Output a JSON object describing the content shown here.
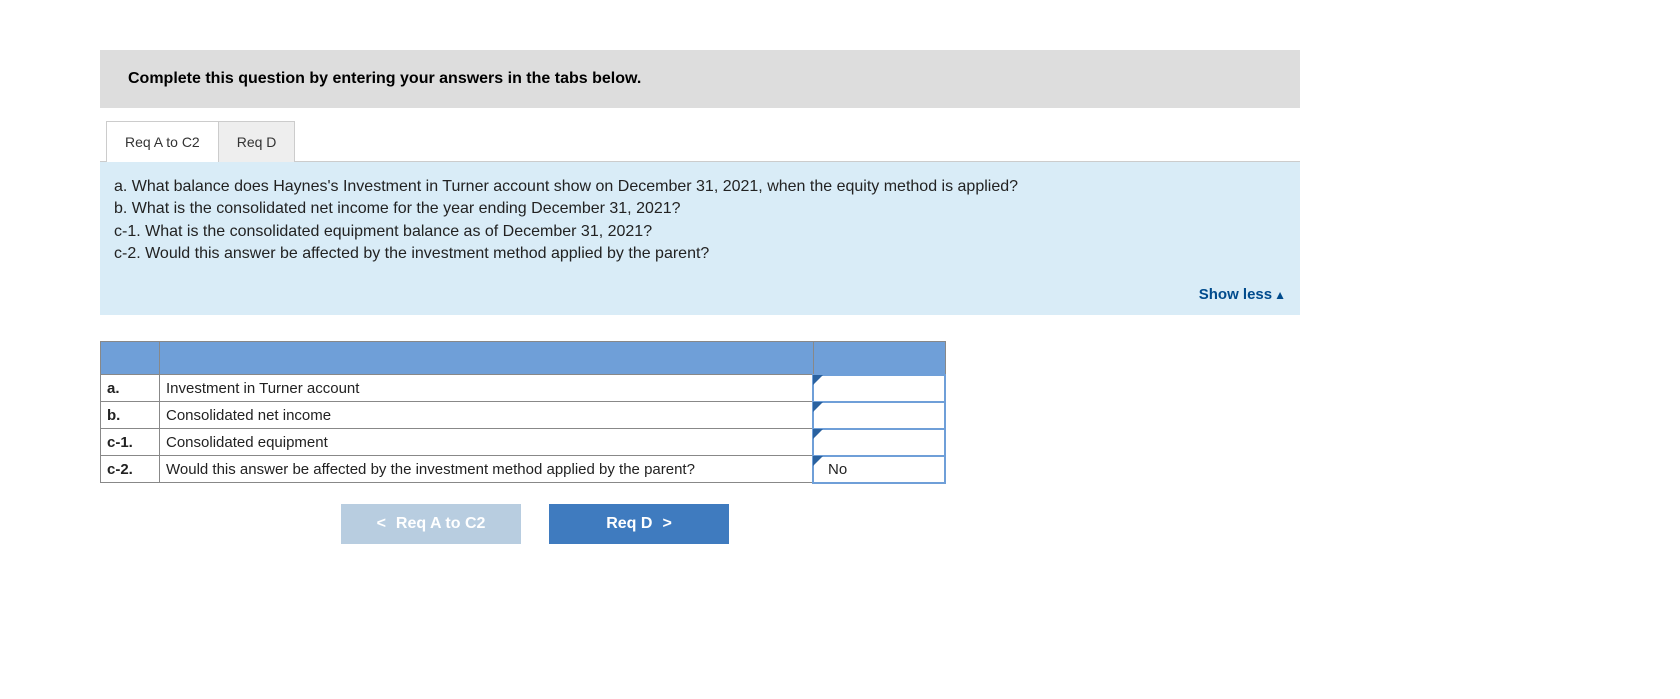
{
  "instruction": "Complete this question by entering your answers in the tabs below.",
  "tabs": [
    {
      "label": "Req A to C2",
      "active": true
    },
    {
      "label": "Req D",
      "active": false
    }
  ],
  "question_lines": [
    "a. What balance does Haynes's Investment in Turner account show on December 31, 2021, when the equity method is applied?",
    "b. What is the consolidated net income for the year ending December 31, 2021?",
    "c-1. What is the consolidated equipment balance as of December 31, 2021?",
    "c-2. Would this answer be affected by the investment method applied by the parent?"
  ],
  "show_less": "Show less",
  "table": {
    "header_bg": "#6f9fd8",
    "input_border": "#6f9fd8",
    "corner_color": "#2a62a0",
    "rows": [
      {
        "label": "a.",
        "desc": "Investment in Turner account",
        "value": "",
        "editable": true
      },
      {
        "label": "b.",
        "desc": "Consolidated net income",
        "value": "",
        "editable": true
      },
      {
        "label": "c-1.",
        "desc": "Consolidated equipment",
        "value": "",
        "editable": true
      },
      {
        "label": "c-2.",
        "desc": "Would this answer be affected by the investment method applied by the parent?",
        "value": "No",
        "editable": true
      }
    ]
  },
  "nav": {
    "prev": "Req A to C2",
    "next": "Req D",
    "prev_bg": "#b8cde0",
    "next_bg": "#3f7bbf"
  }
}
